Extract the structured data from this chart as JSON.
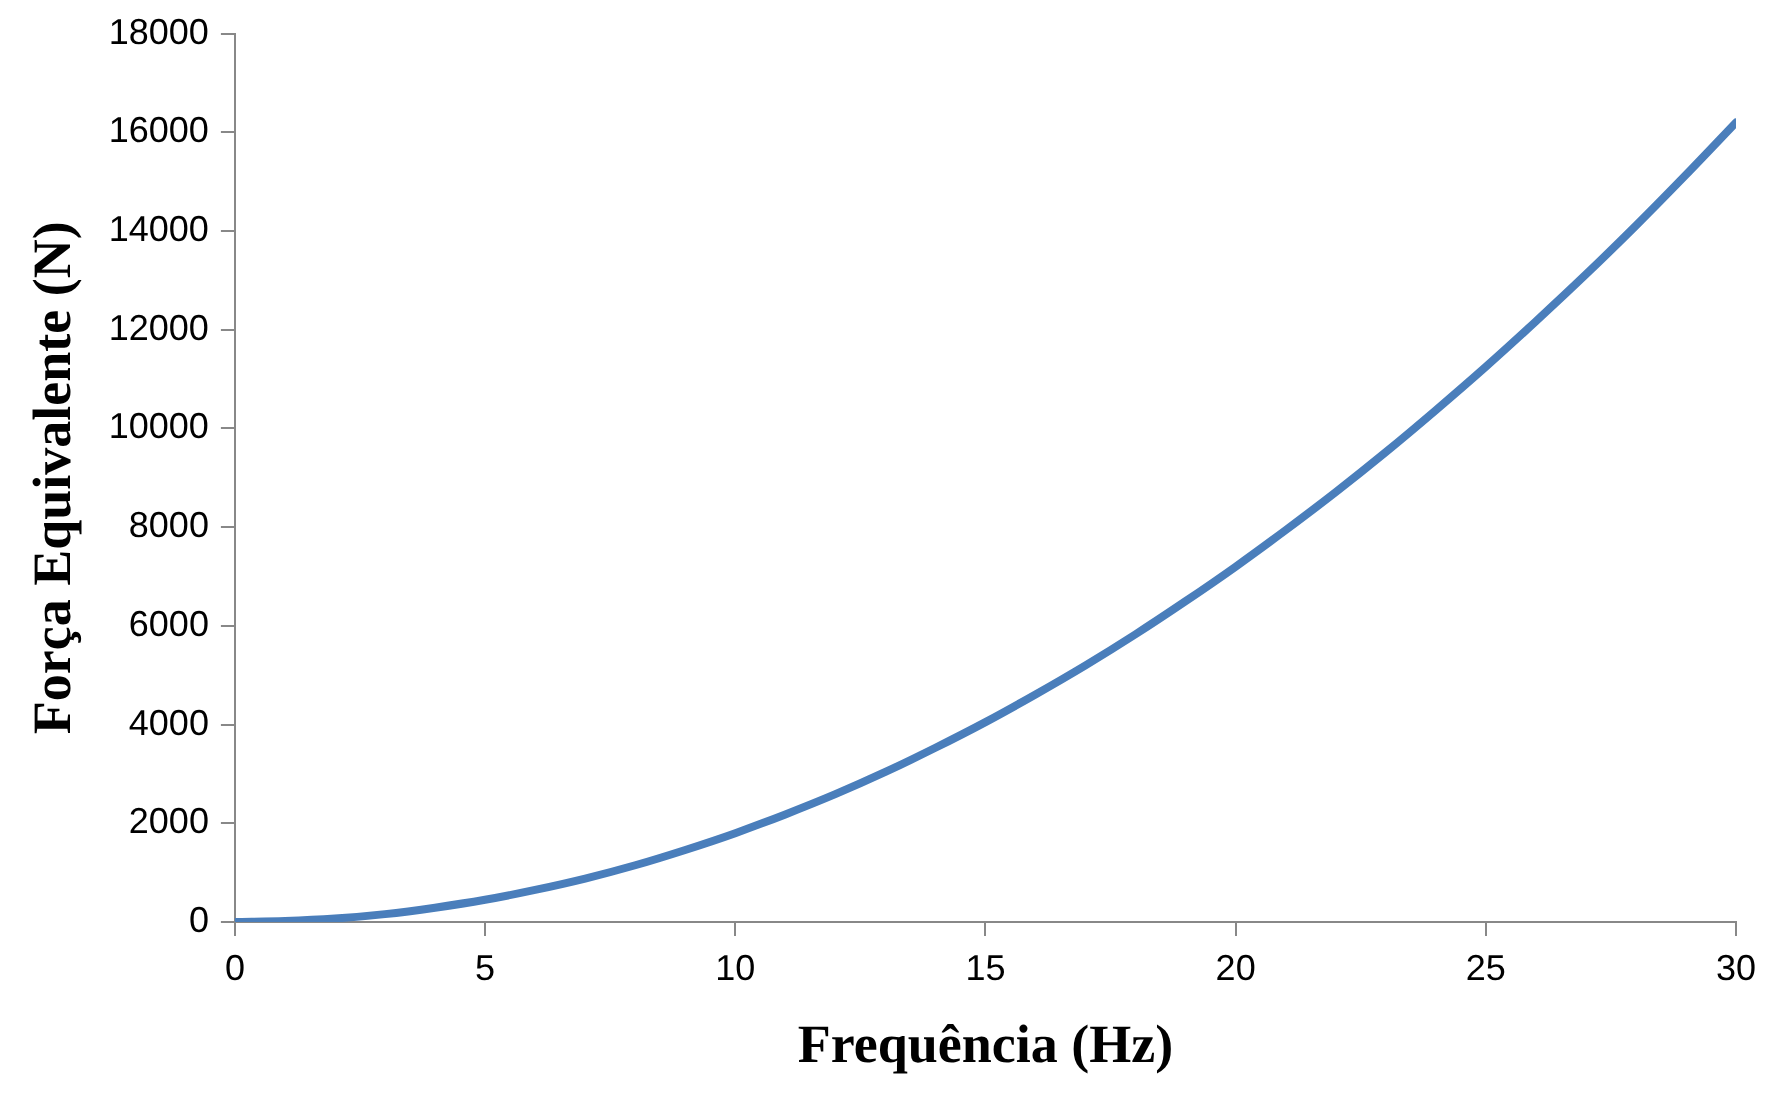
{
  "chart_data": {
    "type": "line",
    "xlabel": "Frequência (Hz)",
    "ylabel": "Força Equivalente (N)",
    "x": [
      0,
      1,
      2,
      3,
      4,
      5,
      6,
      7,
      8,
      9,
      10,
      11,
      12,
      13,
      14,
      15,
      16,
      17,
      18,
      19,
      20,
      21,
      22,
      23,
      24,
      25,
      26,
      27,
      28,
      29,
      30
    ],
    "series": [
      {
        "color": "#4a7ebb",
        "values": [
          0,
          20,
          70,
          160,
          290,
          450,
          650,
          880,
          1150,
          1460,
          1800,
          2180,
          2590,
          3040,
          3530,
          4050,
          4610,
          5200,
          5830,
          6500,
          7200,
          7940,
          8710,
          9520,
          10370,
          11250,
          12170,
          13120,
          14110,
          15140,
          16200
        ]
      }
    ],
    "xlim": [
      0,
      30
    ],
    "xticks": [
      0,
      5,
      10,
      15,
      20,
      25,
      30
    ],
    "ylim": [
      0,
      18000
    ],
    "yticks": [
      0,
      2000,
      4000,
      6000,
      8000,
      10000,
      12000,
      14000,
      16000,
      18000
    ],
    "grid": false,
    "legend": false,
    "marker": "none",
    "line_style": "solid"
  }
}
